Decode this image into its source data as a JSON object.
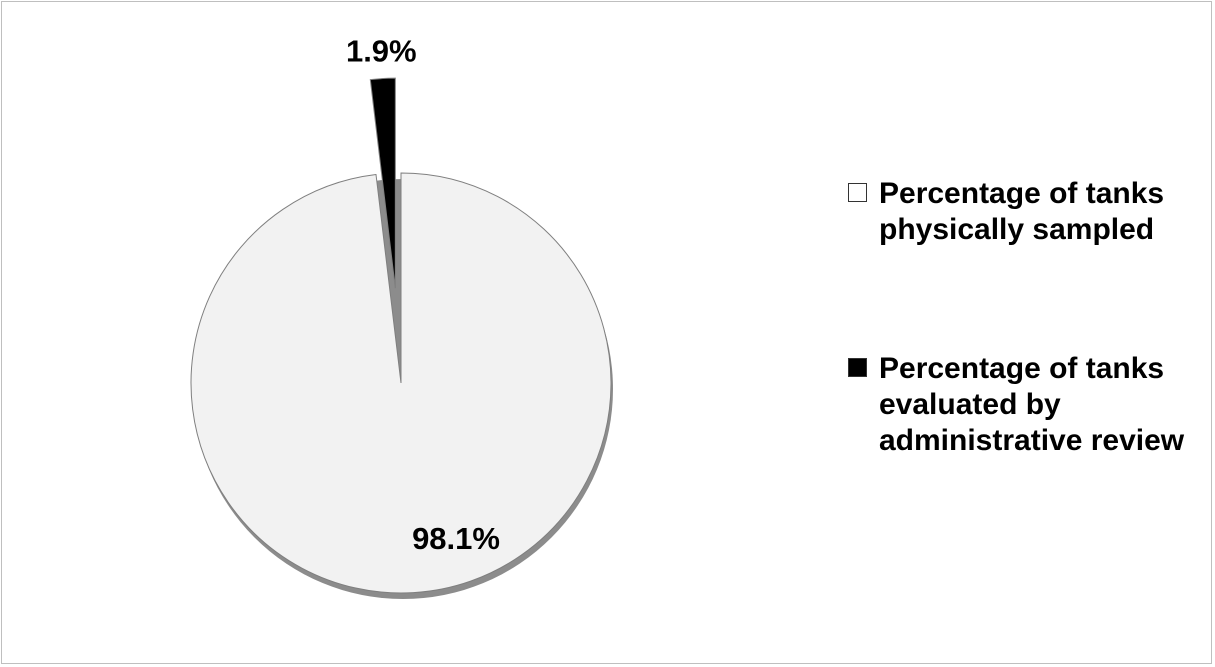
{
  "chart_data": {
    "type": "pie",
    "categories": [
      "Percentage of tanks physically sampled",
      "Percentage of tanks evaluated by administrative review"
    ],
    "values": [
      98.1,
      1.9
    ],
    "value_labels": [
      "98.1%",
      "1.9%"
    ],
    "colors": [
      "#f2f2f2",
      "#000000"
    ],
    "legend": "right"
  }
}
